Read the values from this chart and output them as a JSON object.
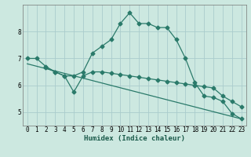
{
  "xlabel": "Humidex (Indice chaleur)",
  "background_color": "#cce8e0",
  "grid_color": "#aacccc",
  "line_color": "#2a7a6a",
  "xlim": [
    -0.5,
    23.5
  ],
  "ylim": [
    4.5,
    9.0
  ],
  "yticks": [
    5,
    6,
    7,
    8
  ],
  "xticks": [
    0,
    1,
    2,
    3,
    4,
    5,
    6,
    7,
    8,
    9,
    10,
    11,
    12,
    13,
    14,
    15,
    16,
    17,
    18,
    19,
    20,
    21,
    22,
    23
  ],
  "line1_x": [
    0,
    1,
    2,
    3,
    4,
    5,
    6,
    7,
    8,
    9,
    10,
    11,
    12,
    13,
    14,
    15,
    16,
    17,
    18,
    19,
    20,
    21,
    22,
    23
  ],
  "line1_y": [
    7.0,
    7.0,
    6.7,
    6.5,
    6.35,
    6.35,
    6.5,
    7.2,
    7.45,
    7.7,
    8.3,
    8.7,
    8.3,
    8.3,
    8.15,
    8.15,
    7.7,
    7.0,
    6.1,
    5.6,
    5.55,
    5.4,
    4.95,
    4.75
  ],
  "line2_x": [
    2,
    3,
    4,
    5,
    6,
    7,
    8,
    9,
    10,
    11,
    12,
    13,
    14,
    15,
    16,
    17,
    18,
    19,
    20,
    21,
    22,
    23
  ],
  "line2_y": [
    6.65,
    6.5,
    6.35,
    5.75,
    6.35,
    6.5,
    6.5,
    6.45,
    6.4,
    6.35,
    6.3,
    6.25,
    6.2,
    6.15,
    6.1,
    6.05,
    6.0,
    5.95,
    5.9,
    5.6,
    5.4,
    5.2
  ],
  "line3_x": [
    0,
    23
  ],
  "line3_y": [
    6.8,
    4.75
  ],
  "marker_size": 2.5,
  "linewidth": 0.9
}
